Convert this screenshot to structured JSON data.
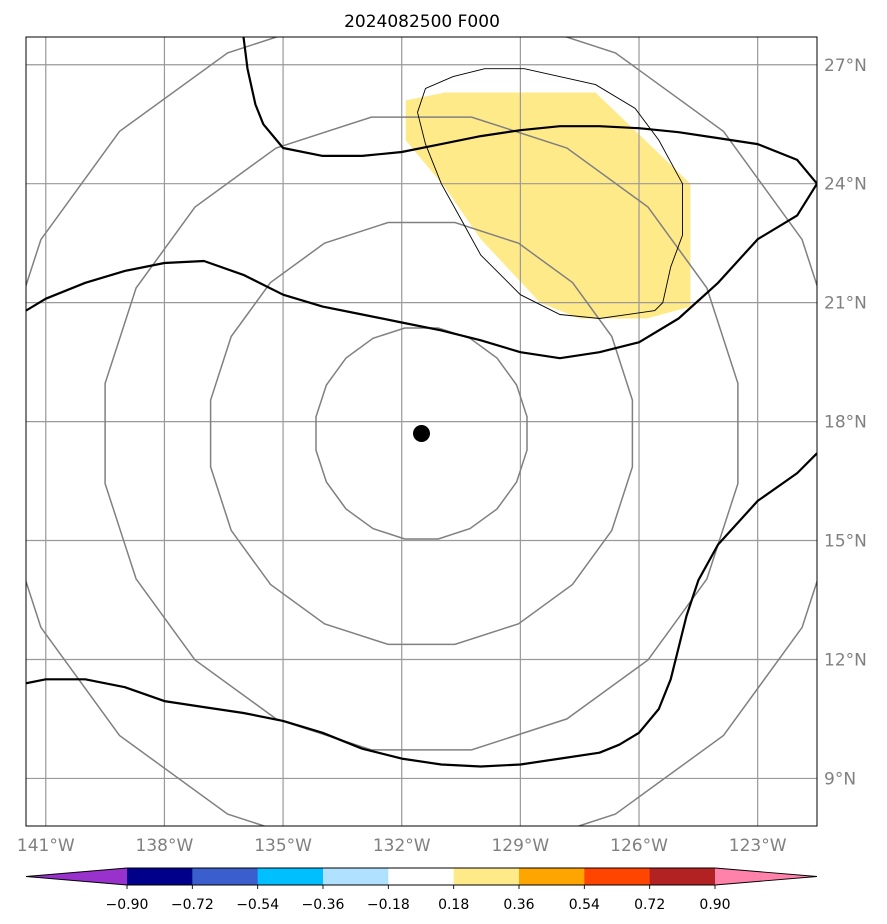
{
  "title": "2024082500 F000",
  "map": {
    "lon_range": [
      -141.5,
      -121.5
    ],
    "lat_range": [
      7.8,
      27.7
    ],
    "lon_ticks": [
      -141,
      -138,
      -135,
      -132,
      -129,
      -126,
      -123
    ],
    "lon_tick_labels": [
      "141°W",
      "138°W",
      "135°W",
      "132°W",
      "129°W",
      "126°W",
      "123°W"
    ],
    "lat_ticks": [
      9,
      12,
      15,
      18,
      21,
      24,
      27
    ],
    "lat_tick_labels": [
      "9°N",
      "12°N",
      "15°N",
      "18°N",
      "21°N",
      "24°N",
      "27°N"
    ],
    "grid": true,
    "grid_color": "#999999",
    "center_marker": {
      "lon": -131.5,
      "lat": 17.7,
      "color": "#000000"
    },
    "range_ring_color": "#808080",
    "range_ring_radii_deg": [
      2.7,
      5.4,
      8.1,
      10.8
    ],
    "shaded_region": {
      "color": "#ffea8a",
      "polygon": [
        [
          -130.9,
          26.3
        ],
        [
          -127.1,
          26.3
        ],
        [
          -124.7,
          24.0
        ],
        [
          -124.7,
          20.9
        ],
        [
          -125.8,
          20.6
        ],
        [
          -127.5,
          20.6
        ],
        [
          -128.5,
          21.0
        ],
        [
          -130.0,
          22.6
        ],
        [
          -130.9,
          23.9
        ],
        [
          -131.9,
          25.1
        ],
        [
          -131.9,
          26.1
        ]
      ]
    },
    "thin_contour": {
      "color": "#000000",
      "points": [
        [
          -129.9,
          26.9
        ],
        [
          -128.9,
          26.9
        ],
        [
          -127.1,
          26.5
        ],
        [
          -126.1,
          25.9
        ],
        [
          -125.5,
          25.1
        ],
        [
          -124.9,
          24.0
        ],
        [
          -124.9,
          22.7
        ],
        [
          -125.2,
          21.9
        ],
        [
          -125.4,
          21.0
        ],
        [
          -125.6,
          20.8
        ],
        [
          -127.0,
          20.6
        ],
        [
          -128.0,
          20.7
        ],
        [
          -129.0,
          21.2
        ],
        [
          -130.0,
          22.2
        ],
        [
          -130.5,
          23.1
        ],
        [
          -131.0,
          24.0
        ],
        [
          -131.4,
          25.0
        ],
        [
          -131.6,
          25.8
        ],
        [
          -131.4,
          26.4
        ],
        [
          -130.7,
          26.7
        ],
        [
          -129.9,
          26.9
        ]
      ]
    },
    "thick_contours": [
      {
        "color": "#000000",
        "points": [
          [
            -136.0,
            27.7
          ],
          [
            -135.9,
            26.9
          ],
          [
            -135.7,
            26.0
          ],
          [
            -135.5,
            25.5
          ],
          [
            -135.0,
            24.9
          ],
          [
            -134.0,
            24.7
          ],
          [
            -133.0,
            24.7
          ],
          [
            -132.0,
            24.8
          ],
          [
            -131.0,
            25.0
          ],
          [
            -130.0,
            25.2
          ],
          [
            -129.0,
            25.35
          ],
          [
            -128.0,
            25.45
          ],
          [
            -127.0,
            25.45
          ],
          [
            -126.0,
            25.4
          ],
          [
            -125.0,
            25.3
          ],
          [
            -124.0,
            25.15
          ],
          [
            -123.0,
            25.0
          ],
          [
            -122.0,
            24.6
          ],
          [
            -121.5,
            24.0
          ]
        ]
      },
      {
        "color": "#000000",
        "points": [
          [
            -141.5,
            20.8
          ],
          [
            -141.0,
            21.1
          ],
          [
            -140.0,
            21.5
          ],
          [
            -139.0,
            21.8
          ],
          [
            -138.0,
            22.0
          ],
          [
            -137.0,
            22.05
          ],
          [
            -136.0,
            21.7
          ],
          [
            -135.0,
            21.2
          ],
          [
            -134.0,
            20.9
          ],
          [
            -133.0,
            20.7
          ],
          [
            -132.0,
            20.5
          ],
          [
            -131.0,
            20.3
          ],
          [
            -130.0,
            20.05
          ],
          [
            -129.0,
            19.75
          ],
          [
            -128.0,
            19.6
          ],
          [
            -127.0,
            19.75
          ],
          [
            -126.0,
            20.0
          ],
          [
            -125.0,
            20.6
          ],
          [
            -124.0,
            21.5
          ],
          [
            -123.0,
            22.6
          ],
          [
            -122.0,
            23.2
          ],
          [
            -121.5,
            24.0
          ]
        ]
      },
      {
        "color": "#000000",
        "points": [
          [
            -141.5,
            11.4
          ],
          [
            -141.0,
            11.5
          ],
          [
            -140.0,
            11.5
          ],
          [
            -139.0,
            11.3
          ],
          [
            -138.0,
            10.95
          ],
          [
            -137.0,
            10.8
          ],
          [
            -136.0,
            10.65
          ],
          [
            -135.0,
            10.45
          ],
          [
            -134.0,
            10.15
          ],
          [
            -133.0,
            9.75
          ],
          [
            -132.0,
            9.5
          ],
          [
            -131.0,
            9.35
          ],
          [
            -130.0,
            9.3
          ],
          [
            -129.0,
            9.35
          ],
          [
            -128.0,
            9.5
          ],
          [
            -127.0,
            9.65
          ],
          [
            -126.5,
            9.85
          ],
          [
            -126.0,
            10.15
          ],
          [
            -125.5,
            10.75
          ],
          [
            -125.2,
            11.5
          ],
          [
            -125.0,
            12.3
          ],
          [
            -124.8,
            13.1
          ],
          [
            -124.5,
            14.0
          ],
          [
            -124.0,
            14.9
          ],
          [
            -123.0,
            16.0
          ],
          [
            -122.0,
            16.7
          ],
          [
            -121.5,
            17.2
          ]
        ]
      }
    ]
  },
  "colorbar": {
    "colors": [
      "#9932cc",
      "#00008b",
      "#3a5fcd",
      "#00bfff",
      "#b0e2ff",
      "#ffffff",
      "#ffea8a",
      "#ffa500",
      "#ff4500",
      "#b22222",
      "#ff82ab"
    ],
    "tick_labels": [
      "−0.90",
      "−0.72",
      "−0.54",
      "−0.36",
      "−0.18",
      "0.18",
      "0.36",
      "0.54",
      "0.72",
      "0.90"
    ]
  }
}
